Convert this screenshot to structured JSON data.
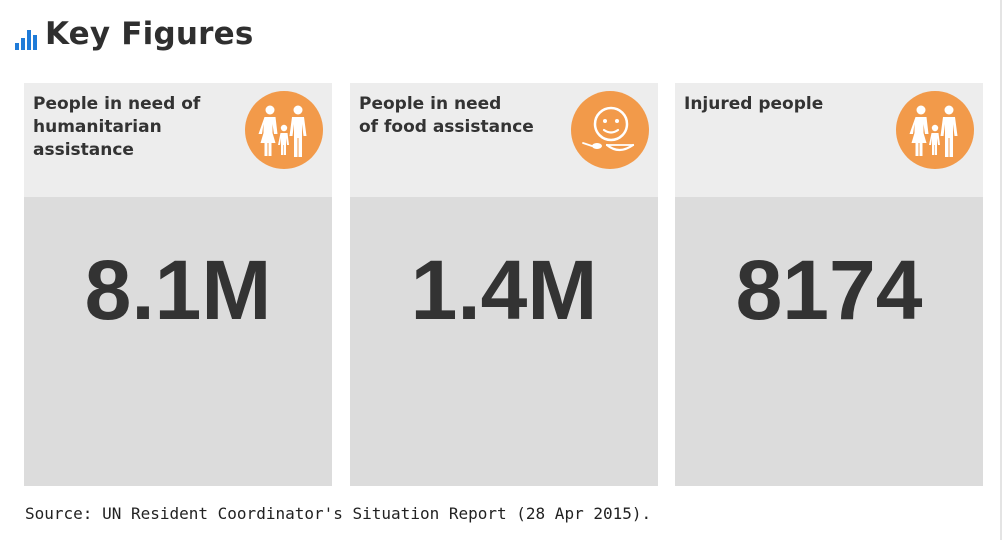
{
  "header": {
    "title": "Key Figures",
    "icon": "bar-chart-icon",
    "icon_color": "#1f7bd8"
  },
  "cards": [
    {
      "label": "People in need of\nhumanitarian\nassistance",
      "value": "8.1M",
      "icon": "family-icon"
    },
    {
      "label": "People in need\nof food assistance",
      "value": "1.4M",
      "icon": "food-icon"
    },
    {
      "label": "Injured people",
      "value": "8174",
      "icon": "family-icon"
    }
  ],
  "source": "Source: UN Resident Coordinator's Situation Report (28 Apr 2015).",
  "colors": {
    "accent": "#f29a4a",
    "card_top": "#ededed",
    "card_bottom": "#dcdcdc",
    "text": "#333333"
  }
}
